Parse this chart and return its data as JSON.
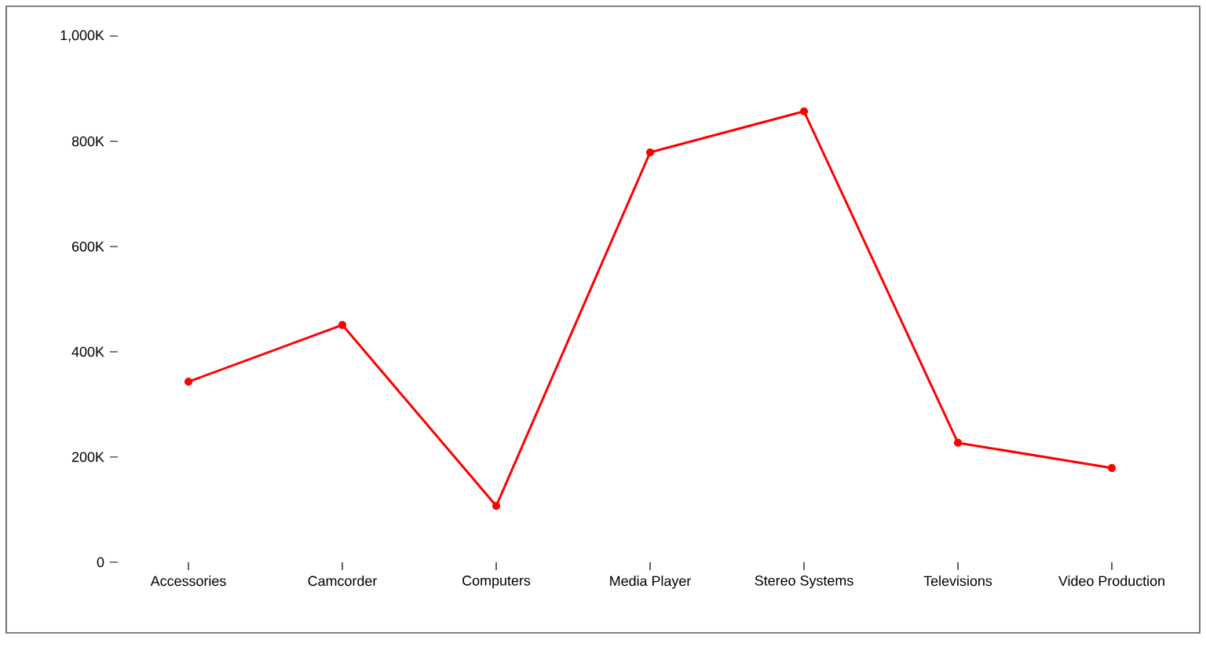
{
  "chart_data": {
    "type": "line",
    "categories": [
      "Accessories",
      "Camcorder",
      "Computers",
      "Media Player",
      "Stereo Systems",
      "Televisions",
      "Video Production"
    ],
    "series": [
      {
        "color": "#ff0000",
        "values": [
          343,
          451,
          107,
          779,
          857,
          227,
          179
        ]
      }
    ],
    "ylim": [
      0,
      1000
    ],
    "yticks": [
      0,
      {
        "value": 200,
        "label": "200K"
      },
      {
        "value": 400,
        "label": "400K"
      },
      {
        "value": 600,
        "label": "600K"
      },
      {
        "value": 800,
        "label": "800K"
      },
      {
        "value": 1000,
        "label": "1,000K"
      }
    ],
    "marker": "circle",
    "grid": false
  }
}
